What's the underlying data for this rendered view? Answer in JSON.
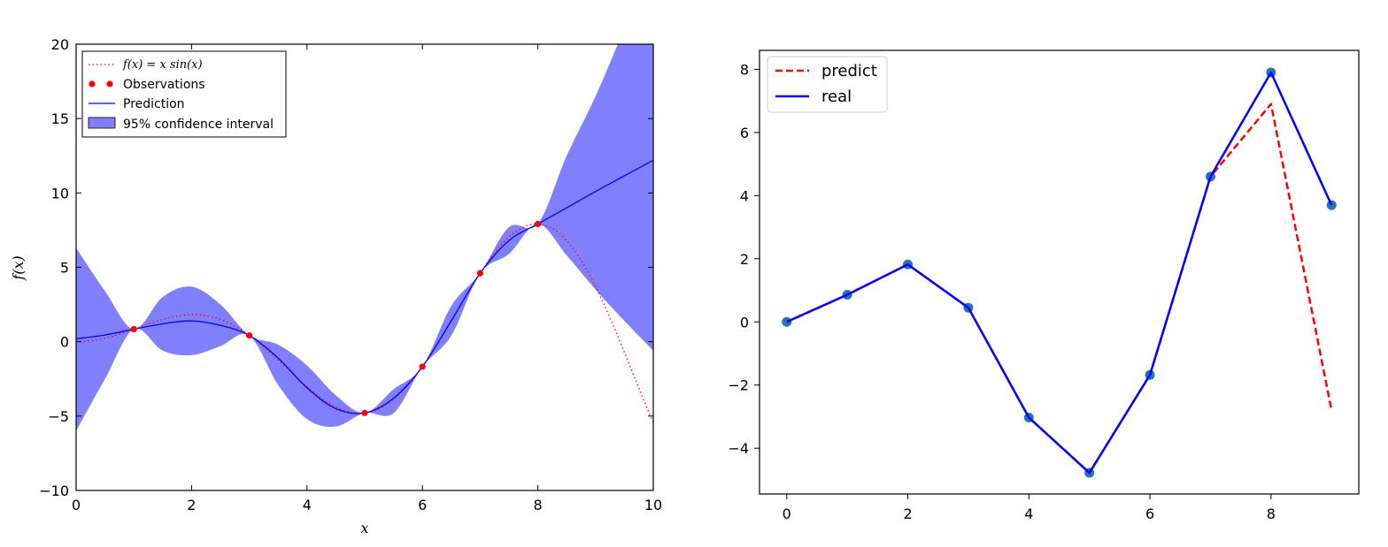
{
  "chart_data": [
    {
      "type": "line",
      "title": "",
      "xlabel": "x",
      "ylabel": "f(x)",
      "xlim": [
        0,
        10
      ],
      "ylim": [
        -10,
        20
      ],
      "xticks": [
        0,
        2,
        4,
        6,
        8,
        10
      ],
      "yticks": [
        -10,
        -5,
        0,
        5,
        10,
        15,
        20
      ],
      "grid": false,
      "legend_position": "top-left",
      "true_function": "x*sin(x)",
      "observations": {
        "x": [
          1,
          3,
          5,
          6,
          7,
          8
        ],
        "y": [
          0.84,
          0.42,
          -4.79,
          -1.68,
          4.6,
          7.91
        ]
      },
      "prediction": {
        "x": [
          0,
          0.5,
          1,
          1.5,
          2,
          2.5,
          3,
          3.5,
          4,
          4.5,
          5,
          5.5,
          6,
          6.5,
          7,
          7.5,
          8,
          8.5,
          9,
          9.5,
          10
        ],
        "y": [
          0.2,
          0.45,
          0.84,
          1.2,
          1.4,
          1.1,
          0.42,
          -1.1,
          -3.1,
          -4.5,
          -4.79,
          -3.8,
          -1.68,
          1.4,
          4.6,
          6.8,
          7.91,
          9.0,
          10.1,
          11.15,
          12.2
        ]
      },
      "confidence_interval": {
        "x": [
          0,
          0.5,
          1,
          1.5,
          2,
          2.5,
          3,
          3.5,
          4,
          4.5,
          5,
          5.5,
          6,
          6.5,
          7,
          7.5,
          8,
          8.5,
          9,
          9.5,
          10
        ],
        "lower": [
          -6.0,
          -2.5,
          0.84,
          -0.6,
          -0.9,
          -0.3,
          0.42,
          -2.9,
          -5.2,
          -5.7,
          -4.79,
          -4.8,
          -1.68,
          0.4,
          4.6,
          5.9,
          7.91,
          5.8,
          3.5,
          1.4,
          -0.6
        ],
        "upper": [
          6.3,
          3.4,
          0.84,
          3.0,
          3.7,
          2.5,
          0.42,
          -0.2,
          -1.6,
          -3.6,
          -4.79,
          -3.2,
          -1.68,
          2.4,
          4.6,
          7.7,
          7.91,
          12.5,
          16.5,
          21.0,
          25.0
        ]
      },
      "legend": [
        "f(x) = x sin(x)",
        "Observations",
        "Prediction",
        "95% confidence interval"
      ],
      "colors": {
        "true_function": "#ff0000",
        "observations": "#ff0000",
        "prediction": "#0000ff",
        "confidence_interval": "#8080ff"
      }
    },
    {
      "type": "line",
      "title": "",
      "xlabel": "",
      "ylabel": "",
      "xlim": [
        -0.45,
        9.45
      ],
      "ylim": [
        -5.45,
        8.6
      ],
      "xticks": [
        0,
        2,
        4,
        6,
        8
      ],
      "yticks": [
        -4,
        -2,
        0,
        2,
        4,
        6,
        8
      ],
      "grid": false,
      "legend_position": "top-left",
      "series": [
        {
          "name": "predict",
          "style": "dashed",
          "color": "#ff0000",
          "x": [
            0,
            1,
            2,
            3,
            4,
            5,
            6,
            7,
            8,
            9
          ],
          "values": [
            0,
            0.86,
            1.82,
            0.45,
            -3.03,
            -4.78,
            -1.68,
            4.6,
            6.9,
            -2.8
          ]
        },
        {
          "name": "real",
          "style": "solid",
          "color": "#0000ff",
          "x": [
            0,
            1,
            2,
            3,
            4,
            5,
            6,
            7,
            8,
            9
          ],
          "values": [
            0,
            0.86,
            1.82,
            0.45,
            -3.03,
            -4.78,
            -1.68,
            4.6,
            7.9,
            3.7
          ]
        }
      ],
      "scatter": {
        "color": "#1f77b4",
        "x": [
          0,
          1,
          2,
          3,
          4,
          5,
          6,
          7,
          8,
          9
        ],
        "values": [
          0,
          0.86,
          1.82,
          0.45,
          -3.03,
          -4.78,
          -1.68,
          4.6,
          7.9,
          3.7
        ]
      }
    }
  ]
}
